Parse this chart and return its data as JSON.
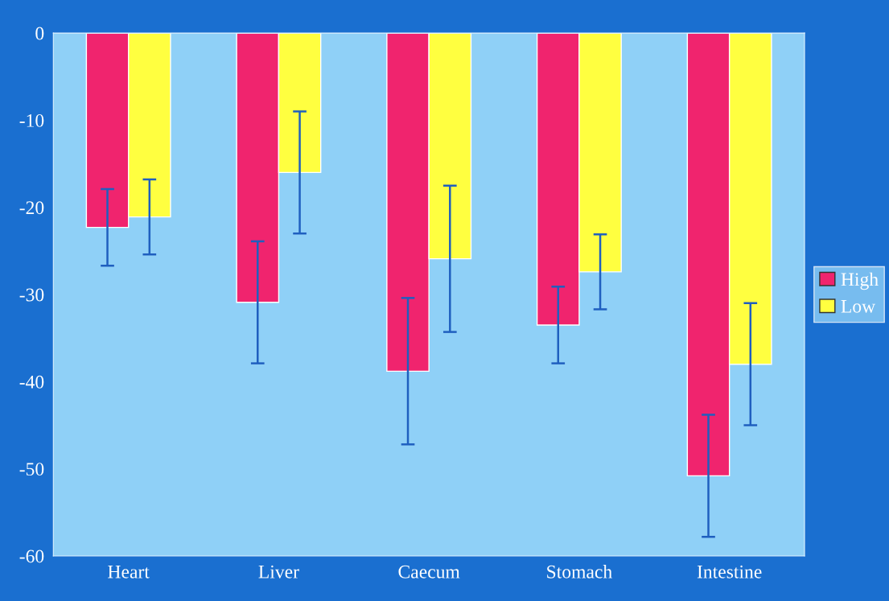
{
  "chart_data": {
    "type": "bar",
    "categories": [
      "Heart",
      "Liver",
      "Caecum",
      "Stomach",
      "Intestine"
    ],
    "series": [
      {
        "name": "High",
        "color": "#f0246e",
        "values": [
          -22.3,
          -30.9,
          -38.8,
          -33.5,
          -50.8
        ],
        "errors": [
          4.4,
          7.0,
          8.4,
          4.4,
          7.0
        ]
      },
      {
        "name": "Low",
        "color": "#ffff40",
        "values": [
          -21.1,
          -16.0,
          -25.9,
          -27.4,
          -38.0
        ],
        "errors": [
          4.3,
          7.0,
          8.4,
          4.3,
          7.0
        ]
      }
    ],
    "ylim": [
      -60,
      0
    ],
    "yticks": [
      0,
      -10,
      -20,
      -30,
      -40,
      -50,
      -60
    ],
    "grid": false,
    "legend": "right"
  }
}
